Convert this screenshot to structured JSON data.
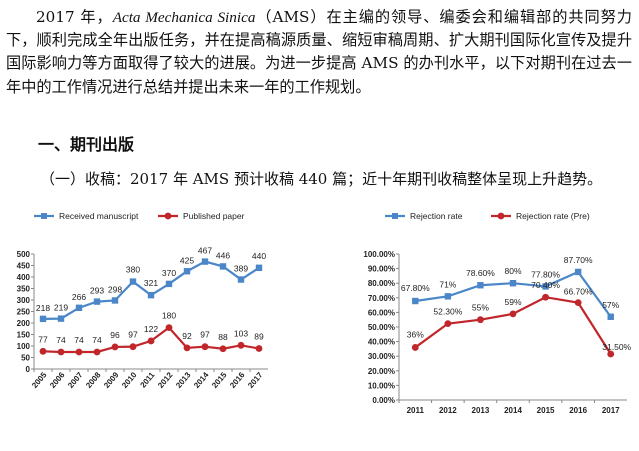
{
  "paragraph": {
    "year": "2017 年，",
    "journal": "Acta Mechanica Sinica",
    "body": "（AMS）在主编的领导、编委会和编辑部的共同努力下，顺利完成全年出版任务，并在提高稿源质量、缩短审稿周期、扩大期刊国际化宣传及提升国际影响力等方面取得了较大的进展。为进一步提高 AMS 的办刊水平，以下对期刊在过去一年中的工作情况进行总结并提出未来一年的工作规划。"
  },
  "section_heading": "一、期刊出版",
  "subsection": "（一）收稿：2017 年 AMS 预计收稿 440 篇；近十年期刊收稿整体呈现上升趋势。",
  "chart_data": [
    {
      "type": "line",
      "x": [
        "2005",
        "2006",
        "2007",
        "2008",
        "2009",
        "2010",
        "2011",
        "2012",
        "2013",
        "2014",
        "2015",
        "2016",
        "2017"
      ],
      "series": [
        {
          "name": "Received manuscript",
          "color": "#4a86c8",
          "marker": "square",
          "values": [
            218,
            219,
            266,
            293,
            298,
            380,
            321,
            370,
            425,
            467,
            446,
            389,
            440
          ],
          "labels": [
            "218",
            "219",
            "266",
            "293",
            "298",
            "380",
            "321",
            "370",
            "425",
            "467",
            "446",
            "389",
            "440"
          ]
        },
        {
          "name": "Published paper",
          "color": "#c0262a",
          "marker": "circle",
          "values": [
            77,
            74,
            74,
            74,
            96,
            97,
            122,
            180,
            92,
            97,
            88,
            103,
            89
          ],
          "labels": [
            "77",
            "74",
            "74",
            "74",
            "96",
            "97",
            "122",
            "180",
            "92",
            "97",
            "88",
            "103",
            "89"
          ]
        }
      ],
      "ylim": [
        0,
        500
      ],
      "yticks": [
        "0",
        "50",
        "100",
        "150",
        "200",
        "250",
        "300",
        "350",
        "400",
        "450",
        "500"
      ],
      "legend": "top-left",
      "grid": false
    },
    {
      "type": "line",
      "x": [
        "2011",
        "2012",
        "2013",
        "2014",
        "2015",
        "2016",
        "2017"
      ],
      "series": [
        {
          "name": "Rejection rate",
          "color": "#4a86c8",
          "marker": "square",
          "values": [
            67.8,
            71,
            78.6,
            80,
            77.8,
            87.7,
            57
          ],
          "labels": [
            "67.80%",
            "71%",
            "78.60%",
            "80%",
            "77.80%",
            "87.70%",
            "57%"
          ]
        },
        {
          "name": "Rejection rate (Pre)",
          "color": "#c0262a",
          "marker": "circle",
          "values": [
            36,
            52.3,
            55,
            59,
            70.4,
            66.7,
            31.5
          ],
          "labels": [
            "36%",
            "52.30%",
            "55%",
            "59%",
            "70.40%",
            "66.70%",
            "31.50%"
          ]
        }
      ],
      "ylim": [
        0,
        100
      ],
      "yticks": [
        "0.00%",
        "10.00%",
        "20.00%",
        "30.00%",
        "40.00%",
        "50.00%",
        "60.00%",
        "70.00%",
        "80.00%",
        "90.00%",
        "100.00%"
      ],
      "legend": "top",
      "grid": false
    }
  ]
}
